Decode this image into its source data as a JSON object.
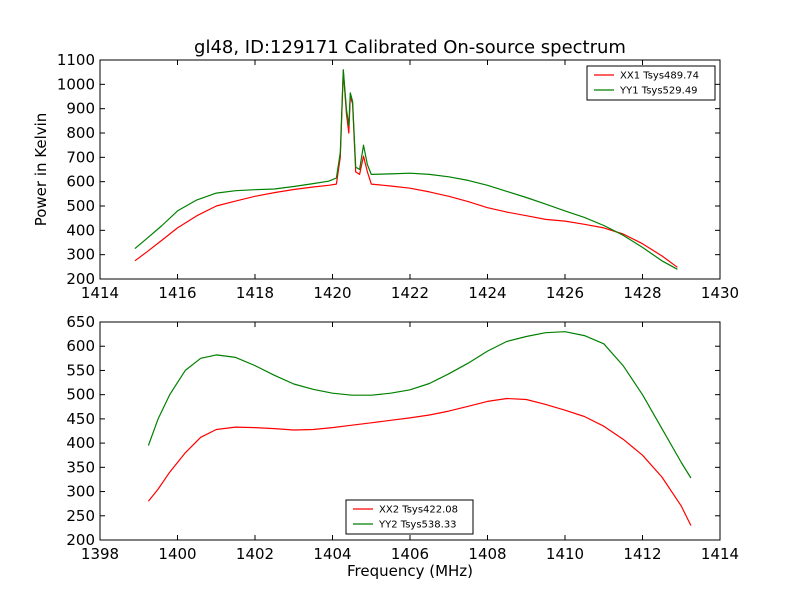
{
  "figure_title": "gl48, ID:129171 Calibrated On-source spectrum",
  "chart_data": [
    {
      "type": "line",
      "title": "gl48, ID:129171 Calibrated On-source spectrum",
      "xlabel": "",
      "ylabel": "Power in Kelvin",
      "xlim": [
        1414,
        1430
      ],
      "ylim": [
        200,
        1100
      ],
      "xticks": [
        1414,
        1416,
        1418,
        1420,
        1422,
        1424,
        1426,
        1428,
        1430
      ],
      "yticks": [
        200,
        300,
        400,
        500,
        600,
        700,
        800,
        900,
        1000,
        1100
      ],
      "legend_position": "upper-right",
      "series": [
        {
          "name": "XX1 Tsys489.74",
          "color": "#ff0000",
          "x": [
            1414.9,
            1415.2,
            1415.6,
            1416.0,
            1416.5,
            1417.0,
            1417.5,
            1418.0,
            1418.5,
            1419.0,
            1419.5,
            1419.9,
            1420.1,
            1420.2,
            1420.28,
            1420.36,
            1420.42,
            1420.46,
            1420.52,
            1420.6,
            1420.7,
            1420.8,
            1420.9,
            1421.0,
            1421.5,
            1422.0,
            1422.5,
            1423.0,
            1423.5,
            1424.0,
            1424.5,
            1425.0,
            1425.5,
            1426.0,
            1426.5,
            1427.0,
            1427.5,
            1428.0,
            1428.5,
            1428.9
          ],
          "y": [
            275,
            310,
            360,
            410,
            460,
            500,
            520,
            540,
            555,
            568,
            578,
            585,
            590,
            700,
            1055,
            880,
            800,
            950,
            920,
            640,
            630,
            705,
            640,
            590,
            582,
            573,
            558,
            540,
            518,
            493,
            475,
            460,
            445,
            438,
            425,
            410,
            385,
            345,
            295,
            248
          ]
        },
        {
          "name": "YY1 Tsys529.49",
          "color": "#008000",
          "x": [
            1414.9,
            1415.2,
            1415.6,
            1416.0,
            1416.5,
            1417.0,
            1417.5,
            1418.0,
            1418.5,
            1419.0,
            1419.5,
            1419.9,
            1420.1,
            1420.2,
            1420.28,
            1420.36,
            1420.42,
            1420.46,
            1420.52,
            1420.6,
            1420.7,
            1420.8,
            1420.9,
            1421.0,
            1421.5,
            1422.0,
            1422.5,
            1423.0,
            1423.5,
            1424.0,
            1424.5,
            1425.0,
            1425.5,
            1426.0,
            1426.5,
            1427.0,
            1427.5,
            1428.0,
            1428.5,
            1428.9
          ],
          "y": [
            325,
            365,
            420,
            480,
            525,
            553,
            563,
            567,
            570,
            580,
            592,
            602,
            615,
            720,
            1060,
            900,
            830,
            965,
            930,
            660,
            650,
            750,
            670,
            630,
            632,
            635,
            630,
            620,
            605,
            585,
            560,
            535,
            508,
            480,
            453,
            420,
            380,
            330,
            275,
            240
          ]
        }
      ]
    },
    {
      "type": "line",
      "title": "",
      "xlabel": "Frequency (MHz)",
      "ylabel": "",
      "xlim": [
        1398,
        1414
      ],
      "ylim": [
        200,
        650
      ],
      "xticks": [
        1398,
        1400,
        1402,
        1404,
        1406,
        1408,
        1410,
        1412,
        1414
      ],
      "yticks": [
        200,
        250,
        300,
        350,
        400,
        450,
        500,
        550,
        600,
        650
      ],
      "legend_position": "lower-center",
      "series": [
        {
          "name": "XX2 Tsys422.08",
          "color": "#ff0000",
          "x": [
            1399.25,
            1399.5,
            1399.8,
            1400.2,
            1400.6,
            1401.0,
            1401.5,
            1402.0,
            1402.5,
            1403.0,
            1403.5,
            1404.0,
            1404.5,
            1405.0,
            1405.5,
            1406.0,
            1406.5,
            1407.0,
            1407.5,
            1408.0,
            1408.5,
            1409.0,
            1409.5,
            1410.0,
            1410.5,
            1411.0,
            1411.5,
            1412.0,
            1412.5,
            1413.0,
            1413.25
          ],
          "y": [
            280,
            305,
            340,
            380,
            412,
            428,
            433,
            432,
            430,
            427,
            428,
            432,
            437,
            442,
            447,
            452,
            458,
            466,
            476,
            486,
            492,
            490,
            480,
            468,
            455,
            435,
            408,
            375,
            330,
            270,
            230
          ]
        },
        {
          "name": "YY2 Tsys538.33",
          "color": "#008000",
          "x": [
            1399.25,
            1399.5,
            1399.8,
            1400.2,
            1400.6,
            1401.0,
            1401.5,
            1402.0,
            1402.5,
            1403.0,
            1403.5,
            1404.0,
            1404.5,
            1405.0,
            1405.5,
            1406.0,
            1406.5,
            1407.0,
            1407.5,
            1408.0,
            1408.5,
            1409.0,
            1409.5,
            1410.0,
            1410.5,
            1411.0,
            1411.5,
            1412.0,
            1412.5,
            1413.0,
            1413.25
          ],
          "y": [
            395,
            450,
            500,
            550,
            575,
            582,
            577,
            560,
            540,
            522,
            511,
            503,
            499,
            499,
            503,
            510,
            523,
            543,
            565,
            590,
            610,
            620,
            628,
            630,
            622,
            605,
            560,
            500,
            430,
            360,
            328
          ]
        }
      ]
    }
  ]
}
